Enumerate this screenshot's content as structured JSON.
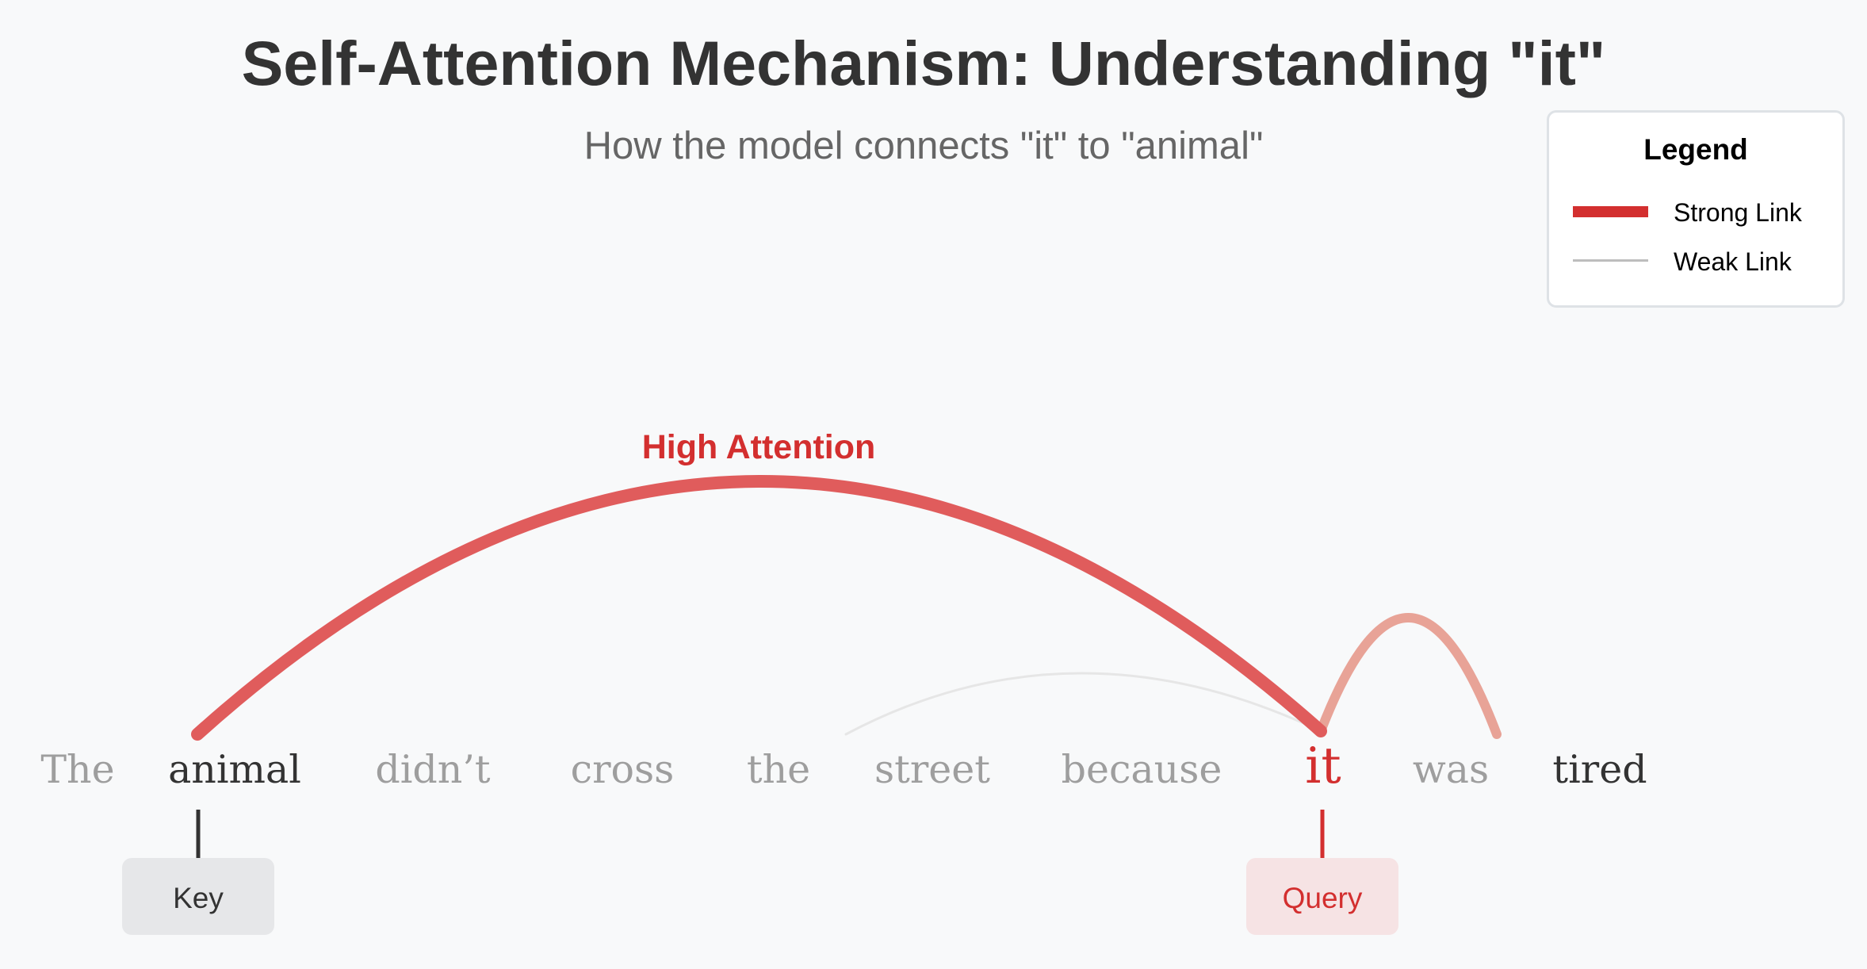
{
  "title": "Self-Attention Mechanism: Understanding \"it\"",
  "subtitle": "How the model connects \"it\" to \"animal\"",
  "legend": {
    "title": "Legend",
    "strong_label": "Strong Link",
    "weak_label": "Weak Link"
  },
  "tokens": [
    {
      "text": "The",
      "style": "faded"
    },
    {
      "text": "animal",
      "style": "key"
    },
    {
      "text": "didn’t",
      "style": "faded"
    },
    {
      "text": "cross",
      "style": "faded"
    },
    {
      "text": "the",
      "style": "faded"
    },
    {
      "text": "street",
      "style": "faded"
    },
    {
      "text": "because",
      "style": "faded"
    },
    {
      "text": "it",
      "style": "query"
    },
    {
      "text": "was",
      "style": "faded"
    },
    {
      "text": "tired",
      "style": "normal"
    }
  ],
  "arcs": [
    {
      "from": "it",
      "to": "animal",
      "strength": "strong",
      "label": "High Attention"
    },
    {
      "from": "it",
      "to": "street",
      "strength": "weak"
    },
    {
      "from": "it",
      "to": "was",
      "strength": "medium"
    }
  ],
  "tags": {
    "key": "Key",
    "query": "Query"
  },
  "colors": {
    "background": "#f8f9fa",
    "title": "#333333",
    "subtitle": "#666666",
    "strong_link": "#d32f2f",
    "arc_strong": "#e05c5c",
    "arc_medium": "#e8a397",
    "weak_link": "#bdbdbd",
    "token_faded": "#9e9e9e",
    "token_normal": "#333333",
    "token_query": "#d32f2f",
    "key_tag_bg": "#e6e7e9",
    "query_tag_bg": "#f6e3e4"
  }
}
